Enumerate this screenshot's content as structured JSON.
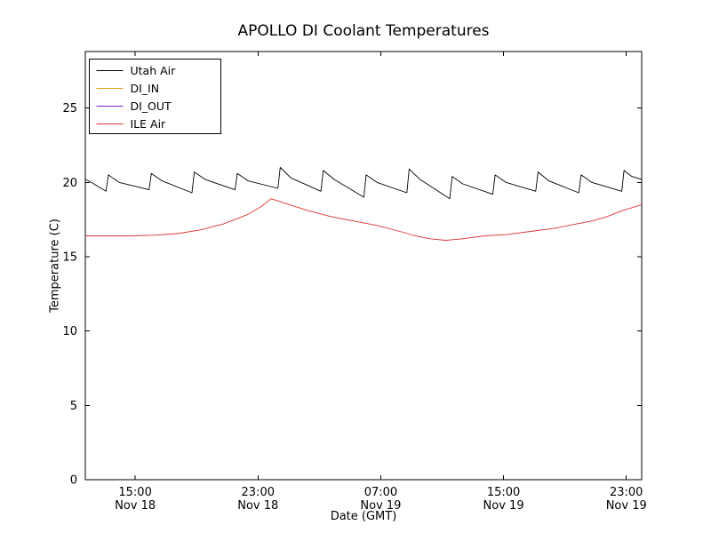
{
  "chart_data": {
    "type": "line",
    "title": "APOLLO DI Coolant Temperatures",
    "xlabel": "Date (GMT)",
    "ylabel": "Temperature (C)",
    "xlim": [
      0,
      36.25
    ],
    "ylim": [
      0,
      28.8
    ],
    "x_units": "hours from left edge of axis (Nov 18 ~11:45 GMT)",
    "grid": false,
    "legend_position": "upper-left",
    "yticks": [
      0,
      5,
      10,
      15,
      20,
      25
    ],
    "xticks": [
      {
        "x": 3.25,
        "time": "15:00",
        "date": "Nov 18"
      },
      {
        "x": 11.25,
        "time": "23:00",
        "date": "Nov 18"
      },
      {
        "x": 19.25,
        "time": "07:00",
        "date": "Nov 19"
      },
      {
        "x": 27.25,
        "time": "15:00",
        "date": "Nov 19"
      },
      {
        "x": 35.25,
        "time": "23:00",
        "date": "Nov 19"
      }
    ],
    "series": [
      {
        "name": "Utah Air",
        "color": "#000000",
        "x": [
          0,
          0.3,
          1.35,
          1.5,
          2.2,
          4.15,
          4.3,
          5.0,
          6.95,
          7.1,
          7.8,
          9.75,
          9.9,
          10.6,
          12.55,
          12.7,
          13.4,
          15.35,
          15.5,
          16.2,
          18.15,
          18.3,
          19.0,
          20.95,
          21.1,
          21.8,
          23.75,
          23.9,
          24.6,
          26.55,
          26.7,
          27.4,
          29.35,
          29.5,
          30.2,
          32.15,
          32.3,
          33.0,
          34.95,
          35.1,
          35.6,
          36.25
        ],
        "y": [
          20.2,
          20.05,
          19.4,
          20.5,
          20.0,
          19.5,
          20.6,
          20.1,
          19.3,
          20.7,
          20.2,
          19.5,
          20.6,
          20.1,
          19.6,
          21.0,
          20.3,
          19.4,
          20.8,
          20.2,
          19.0,
          20.5,
          20.0,
          19.3,
          20.9,
          20.2,
          18.9,
          20.4,
          19.9,
          19.2,
          20.5,
          20.0,
          19.4,
          20.7,
          20.1,
          19.3,
          20.5,
          20.0,
          19.4,
          20.8,
          20.4,
          20.2
        ]
      },
      {
        "name": "DI_IN",
        "color": "#d9a520",
        "x": [],
        "y": []
      },
      {
        "name": "DI_OUT",
        "color": "#7d26cd",
        "x": [],
        "y": []
      },
      {
        "name": "ILE Air",
        "color": "#dd3333",
        "x": [
          0,
          1.5,
          3,
          4.5,
          6,
          7.5,
          9,
          10.5,
          11.5,
          12.1,
          13,
          14.5,
          16,
          17.5,
          19,
          20.5,
          21.5,
          22.5,
          23.5,
          24.5,
          26,
          27.5,
          29,
          30.5,
          32,
          33,
          34,
          35,
          36.25
        ],
        "y": [
          16.4,
          16.4,
          16.4,
          16.45,
          16.55,
          16.8,
          17.2,
          17.8,
          18.4,
          18.9,
          18.6,
          18.1,
          17.7,
          17.4,
          17.1,
          16.7,
          16.4,
          16.2,
          16.1,
          16.2,
          16.4,
          16.5,
          16.7,
          16.9,
          17.2,
          17.4,
          17.7,
          18.1,
          18.5
        ]
      }
    ]
  },
  "frame": {
    "background": "#ffffff",
    "axes_color": "#000000"
  }
}
